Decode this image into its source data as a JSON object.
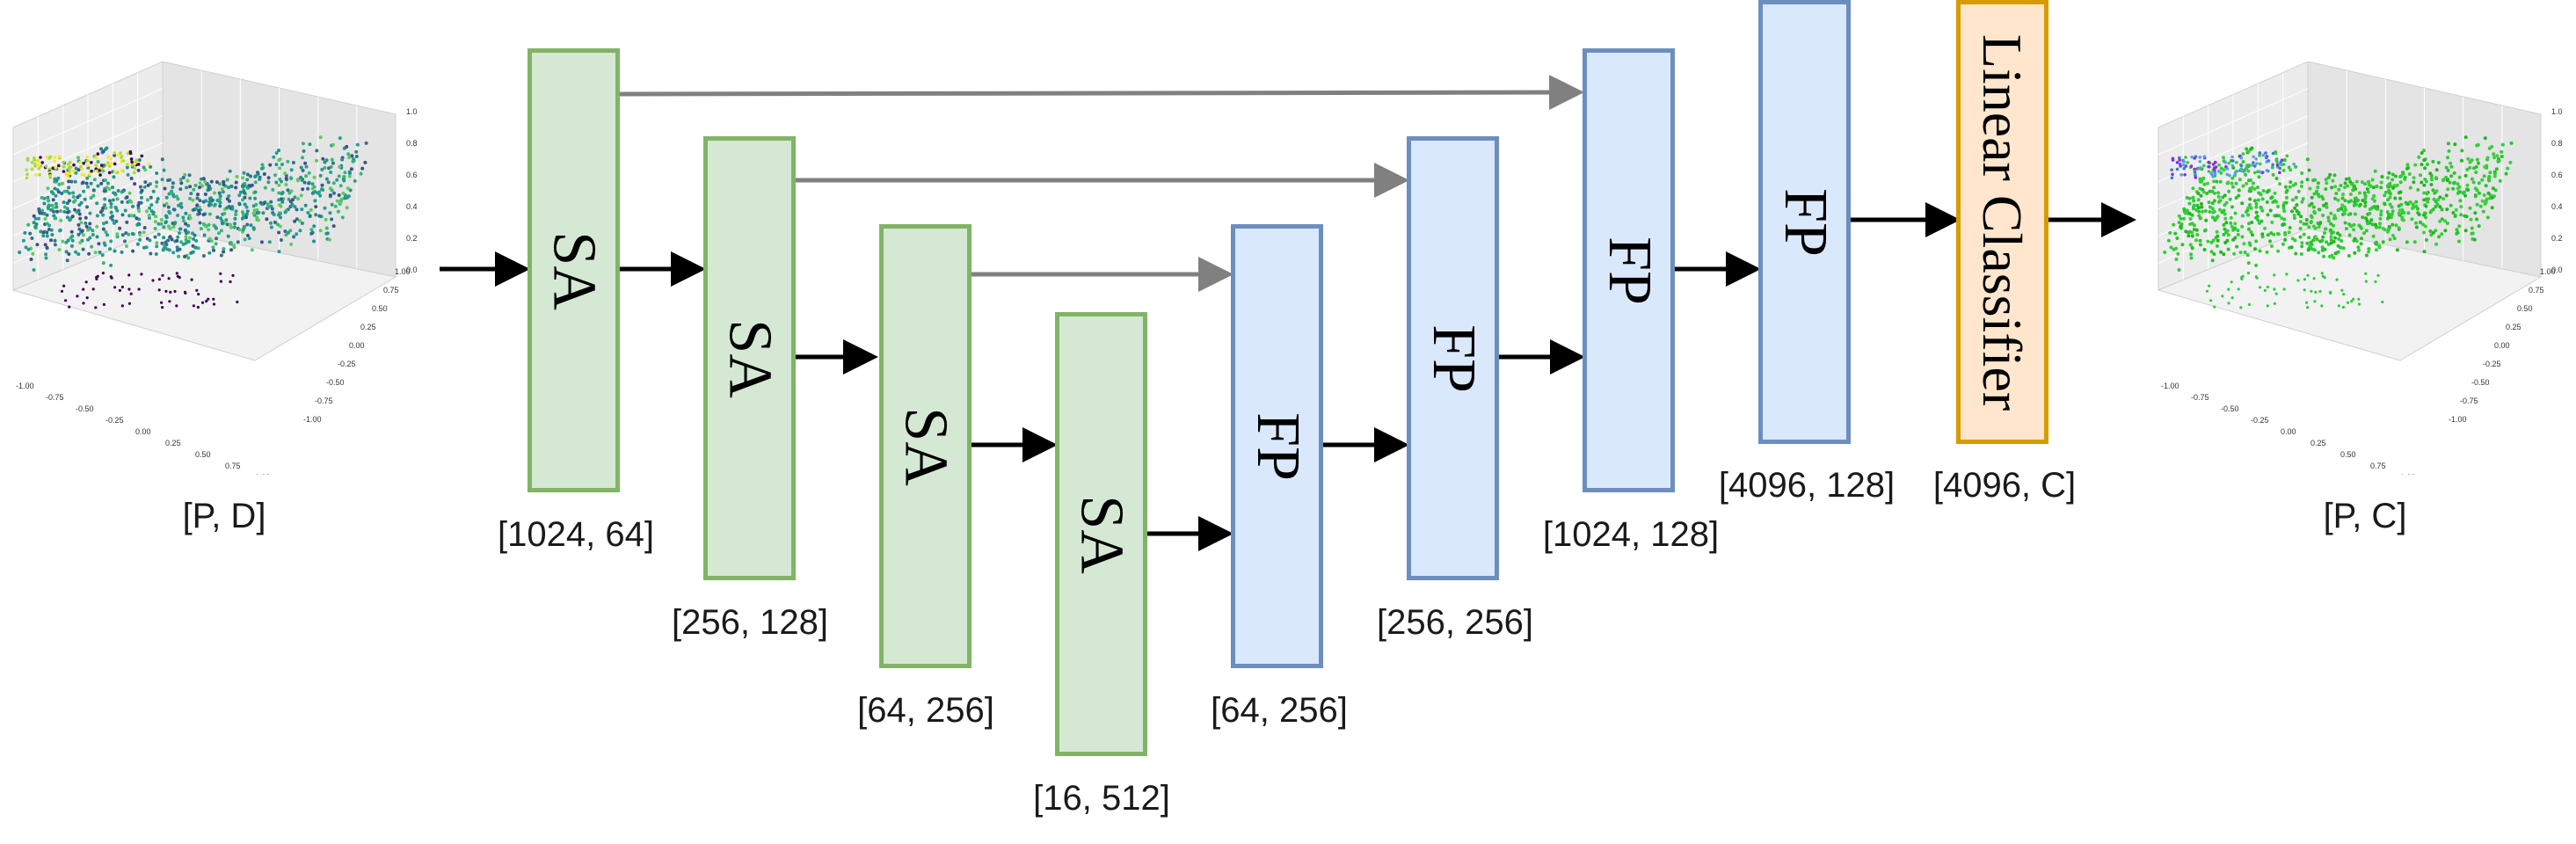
{
  "input": {
    "label": "[P, D]"
  },
  "output": {
    "label": "[P, C]"
  },
  "encoder": [
    {
      "label": "SA",
      "dims": "[1024, 64]"
    },
    {
      "label": "SA",
      "dims": "[256, 128]"
    },
    {
      "label": "SA",
      "dims": "[64, 256]"
    },
    {
      "label": "SA",
      "dims": "[16, 512]"
    }
  ],
  "decoder": [
    {
      "label": "FP",
      "dims": "[64, 256]"
    },
    {
      "label": "FP",
      "dims": "[256, 256]"
    },
    {
      "label": "FP",
      "dims": "[1024, 128]"
    },
    {
      "label": "FP",
      "dims": "[4096, 128]"
    }
  ],
  "classifier": {
    "label": "Linear Classifier",
    "dims": "[4096, C]"
  },
  "plot_axes": {
    "z_ticks": [
      "0.0",
      "0.2",
      "0.4",
      "0.6",
      "0.8",
      "1.0"
    ],
    "x_ticks": [
      "-1.00",
      "-0.75",
      "-0.50",
      "-0.25",
      "0.00",
      "0.25",
      "0.50",
      "0.75",
      "1.00"
    ],
    "y_ticks": [
      "-1.00",
      "-0.75",
      "-0.50",
      "-0.25",
      "0.00",
      "0.25",
      "0.50",
      "0.75",
      "1.00"
    ]
  },
  "colors": {
    "sa_fill": "#d5e8d4",
    "sa_stroke": "#82b366",
    "fp_fill": "#dae8fc",
    "fp_stroke": "#6c8ebf",
    "lc_fill": "#ffe6cc",
    "lc_stroke": "#d79b00",
    "skip_arrow": "#808080",
    "main_arrow": "#000000"
  }
}
